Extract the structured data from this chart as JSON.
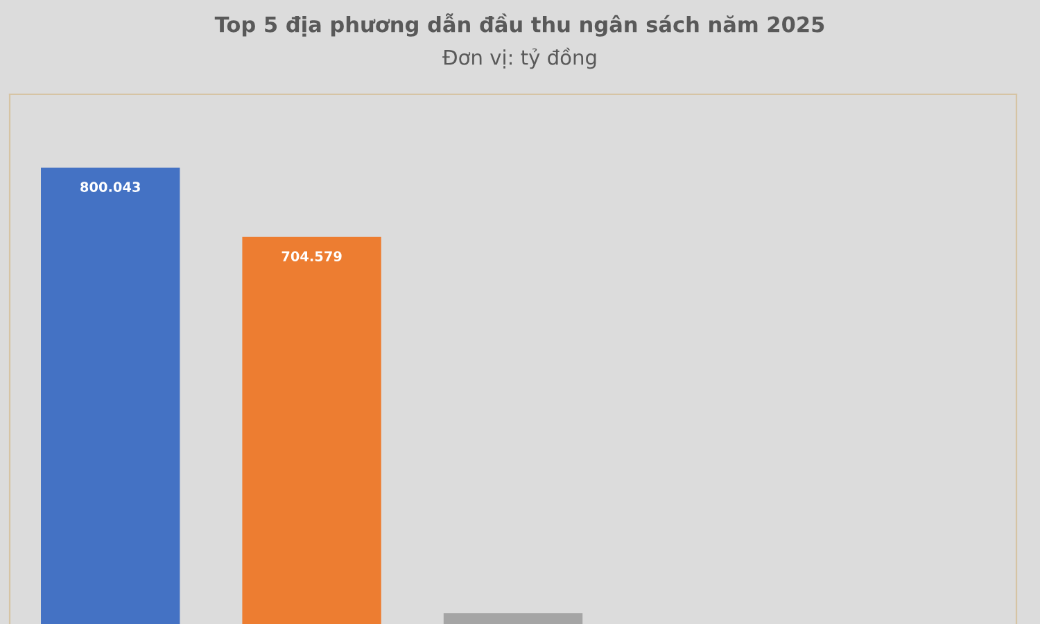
{
  "chart_data": {
    "type": "bar",
    "title": "Top 5 địa phương dẫn đầu thu ngân sách năm 2025",
    "subtitle": "Đơn vị: tỷ đồng",
    "categories": [
      null,
      null,
      null
    ],
    "values": [
      800.043,
      704.579,
      187
    ],
    "colors": [
      "#4472c4",
      "#ed7d31",
      "#a5a5a5"
    ],
    "value_labels": [
      "800.043",
      "704.579",
      null
    ],
    "ylim": [
      172,
      901
    ]
  }
}
